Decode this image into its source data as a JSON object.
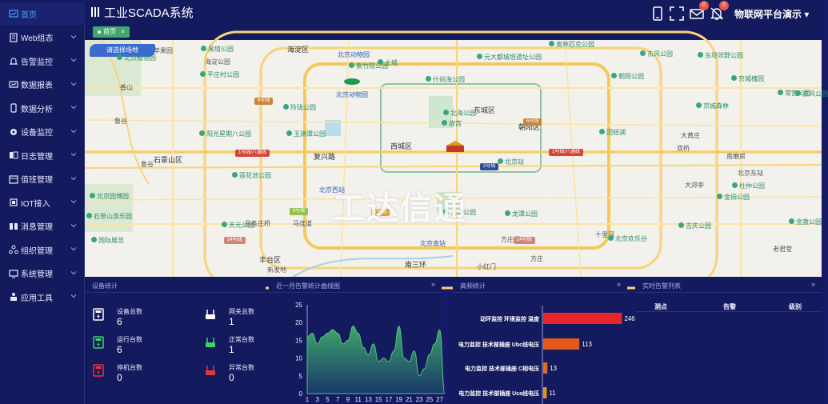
{
  "header": {
    "title": "工业SCADA系统",
    "mail_badge": "0",
    "alert_badge": "0",
    "user": "物联网平台演示"
  },
  "sidebar": {
    "items": [
      {
        "label": "首页",
        "icon": "dashboard-icon",
        "active": true,
        "chevron": false
      },
      {
        "label": "Web组态",
        "icon": "document-icon",
        "chevron": true
      },
      {
        "label": "告警监控",
        "icon": "bell-icon",
        "chevron": true
      },
      {
        "label": "数据报表",
        "icon": "report-icon",
        "chevron": true
      },
      {
        "label": "数据分析",
        "icon": "phone-icon",
        "chevron": true
      },
      {
        "label": "设备监控",
        "icon": "gear-icon",
        "chevron": true
      },
      {
        "label": "日志管理",
        "icon": "log-icon",
        "chevron": true
      },
      {
        "label": "值班管理",
        "icon": "calendar-icon",
        "chevron": true
      },
      {
        "label": "IOT接入",
        "icon": "iot-icon",
        "chevron": true
      },
      {
        "label": "消息管理",
        "icon": "message-icon",
        "chevron": true
      },
      {
        "label": "组织管理",
        "icon": "org-icon",
        "chevron": true
      },
      {
        "label": "系统管理",
        "icon": "monitor-icon",
        "chevron": true
      },
      {
        "label": "应用工具",
        "icon": "tool-icon",
        "chevron": true
      }
    ]
  },
  "tabs": {
    "home": "首页",
    "close": "×"
  },
  "map": {
    "site_select": "请选择场地",
    "watermark": "工达信通",
    "labels": [
      {
        "t": "海淀区",
        "x": 253,
        "y": 5,
        "k": "big"
      },
      {
        "t": "奥林匹克公园",
        "x": 580,
        "y": 0,
        "k": "poi"
      },
      {
        "t": "东风公园",
        "x": 694,
        "y": 12,
        "k": "poi"
      },
      {
        "t": "东坝郊野公园",
        "x": 766,
        "y": 14,
        "k": "poi"
      },
      {
        "t": "黑塔公园",
        "x": 145,
        "y": 6,
        "k": "poi"
      },
      {
        "t": "海淀公园",
        "x": 150,
        "y": 22,
        "k": ""
      },
      {
        "t": "北京动物园",
        "x": 316,
        "y": 13,
        "k": "blue"
      },
      {
        "t": "北京植物园",
        "x": 40,
        "y": 17,
        "k": "poi"
      },
      {
        "t": "苹果园",
        "x": 86,
        "y": 8,
        "k": ""
      },
      {
        "t": "紫竹院公园",
        "x": 330,
        "y": 27,
        "k": "poi"
      },
      {
        "t": "土城",
        "x": 366,
        "y": 23,
        "k": "poi"
      },
      {
        "t": "元大都城垣遗址公园",
        "x": 490,
        "y": 16,
        "k": "poi"
      },
      {
        "t": "平庄村公园",
        "x": 144,
        "y": 38,
        "k": "poi"
      },
      {
        "t": "北京动物园",
        "x": 314,
        "y": 63,
        "k": "blue"
      },
      {
        "t": "什刹海公园",
        "x": 426,
        "y": 44,
        "k": "poi"
      },
      {
        "t": "朝阳公园",
        "x": 658,
        "y": 40,
        "k": "poi"
      },
      {
        "t": "京城槐园",
        "x": 808,
        "y": 43,
        "k": "poi"
      },
      {
        "t": "常营公园",
        "x": 866,
        "y": 61,
        "k": "poi"
      },
      {
        "t": "东风公园",
        "x": 888,
        "y": 62,
        "k": "poi"
      },
      {
        "t": "北海公园",
        "x": 448,
        "y": 86,
        "k": "poi"
      },
      {
        "t": "东城区",
        "x": 486,
        "y": 81,
        "k": "big"
      },
      {
        "t": "京城森林",
        "x": 764,
        "y": 77,
        "k": "poi"
      },
      {
        "t": "玲珑公园",
        "x": 248,
        "y": 79,
        "k": "poi"
      },
      {
        "t": "香山",
        "x": 44,
        "y": 54,
        "k": ""
      },
      {
        "t": "故宫",
        "x": 446,
        "y": 99,
        "k": "poi"
      },
      {
        "t": "朝阳区",
        "x": 542,
        "y": 102,
        "k": "big"
      },
      {
        "t": "鲁谷",
        "x": 37,
        "y": 96,
        "k": ""
      },
      {
        "t": "阳光星期八公园",
        "x": 143,
        "y": 112,
        "k": "poi"
      },
      {
        "t": "玉渊潭公园",
        "x": 252,
        "y": 112,
        "k": "poi"
      },
      {
        "t": "团结湖",
        "x": 643,
        "y": 110,
        "k": "poi"
      },
      {
        "t": "大黄庄",
        "x": 745,
        "y": 114,
        "k": ""
      },
      {
        "t": "西城区",
        "x": 382,
        "y": 126,
        "k": "big"
      },
      {
        "t": "石景山区",
        "x": 86,
        "y": 143,
        "k": "big"
      },
      {
        "t": "复兴路",
        "x": 286,
        "y": 139,
        "k": "big"
      },
      {
        "t": "双桥",
        "x": 740,
        "y": 130,
        "k": ""
      },
      {
        "t": "南磨房",
        "x": 802,
        "y": 140,
        "k": ""
      },
      {
        "t": "北京站",
        "x": 516,
        "y": 147,
        "k": "poi"
      },
      {
        "t": "北京西站",
        "x": 293,
        "y": 182,
        "k": "blue"
      },
      {
        "t": "北京东站",
        "x": 816,
        "y": 161,
        "k": ""
      },
      {
        "t": "鲁谷",
        "x": 70,
        "y": 150,
        "k": ""
      },
      {
        "t": "莲花池公园",
        "x": 184,
        "y": 164,
        "k": "poi"
      },
      {
        "t": "杜仲公园",
        "x": 809,
        "y": 177,
        "k": "poi"
      },
      {
        "t": "金田公园",
        "x": 790,
        "y": 191,
        "k": "poi"
      },
      {
        "t": "北京园博园",
        "x": 6,
        "y": 190,
        "k": "poi"
      },
      {
        "t": "天坛公园",
        "x": 448,
        "y": 210,
        "k": "poi"
      },
      {
        "t": "龙潭公园",
        "x": 525,
        "y": 212,
        "k": "poi"
      },
      {
        "t": "十里河",
        "x": 638,
        "y": 238,
        "k": ""
      },
      {
        "t": "天元公园",
        "x": 171,
        "y": 226,
        "k": "poi"
      },
      {
        "t": "岳各庄桥",
        "x": 200,
        "y": 224,
        "k": ""
      },
      {
        "t": "吉庆公园",
        "x": 742,
        "y": 227,
        "k": "poi"
      },
      {
        "t": "石景山游乐园",
        "x": 2,
        "y": 215,
        "k": "poi"
      },
      {
        "t": "北京南站",
        "x": 419,
        "y": 249,
        "k": "blue"
      },
      {
        "t": "方庄桥",
        "x": 520,
        "y": 244,
        "k": ""
      },
      {
        "t": "北京欢乐谷",
        "x": 654,
        "y": 243,
        "k": "poi"
      },
      {
        "t": "国际展览",
        "x": 8,
        "y": 245,
        "k": "poi"
      },
      {
        "t": "丰台区",
        "x": 218,
        "y": 268,
        "k": "big"
      },
      {
        "t": "南三环",
        "x": 400,
        "y": 274,
        "k": "big"
      },
      {
        "t": "方庄",
        "x": 557,
        "y": 268,
        "k": ""
      },
      {
        "t": "老君堂",
        "x": 860,
        "y": 256,
        "k": ""
      },
      {
        "t": "金盏公园",
        "x": 880,
        "y": 222,
        "k": "poi"
      },
      {
        "t": "小红门",
        "x": 490,
        "y": 278,
        "k": ""
      },
      {
        "t": "大郊亭",
        "x": 750,
        "y": 176,
        "k": ""
      },
      {
        "t": "马连道",
        "x": 260,
        "y": 224,
        "k": ""
      },
      {
        "t": "新发地",
        "x": 228,
        "y": 282,
        "k": ""
      }
    ],
    "shields": [
      {
        "t": "6号线",
        "x": 212,
        "y": 72,
        "c": "#c7853b"
      },
      {
        "t": "6号线",
        "x": 548,
        "y": 98,
        "c": "#c7853b"
      },
      {
        "t": "1号线/八通线",
        "x": 188,
        "y": 137,
        "c": "#d2473b"
      },
      {
        "t": "1号线/八通线",
        "x": 580,
        "y": 136,
        "c": "#d2473b"
      },
      {
        "t": "9号线",
        "x": 256,
        "y": 210,
        "c": "#8ec347"
      },
      {
        "t": "14号线",
        "x": 174,
        "y": 246,
        "c": "#d2847c"
      },
      {
        "t": "2号线",
        "x": 494,
        "y": 154,
        "c": "#2d4c9e"
      },
      {
        "t": "14号线",
        "x": 536,
        "y": 246,
        "c": "#d2847c"
      },
      {
        "t": "7号线",
        "x": 358,
        "y": 211,
        "c": "#d9a441"
      }
    ]
  },
  "device_stats": {
    "title": "设备统计",
    "items": [
      {
        "label": "设备总数",
        "value": "6",
        "icon": "device-total-icon",
        "color": "#ffffff"
      },
      {
        "label": "网关总数",
        "value": "1",
        "icon": "gateway-total-icon",
        "color": "#ffffff"
      },
      {
        "label": "运行台数",
        "value": "6",
        "icon": "device-running-icon",
        "color": "#39d36a"
      },
      {
        "label": "正常台数",
        "value": "1",
        "icon": "gateway-normal-icon",
        "color": "#39d36a"
      },
      {
        "label": "停机台数",
        "value": "0",
        "icon": "device-stopped-icon",
        "color": "#e8343a"
      },
      {
        "label": "异常台数",
        "value": "0",
        "icon": "gateway-abnormal-icon",
        "color": "#e8343a"
      }
    ]
  },
  "alarm_trend": {
    "title": "近一月告警统计曲线图"
  },
  "freq_stats": {
    "title": "高频统计"
  },
  "alarm_list": {
    "title": "实时告警列表",
    "columns": [
      "测点",
      "告警",
      "级别"
    ]
  },
  "chart_data": [
    {
      "type": "area",
      "title": "近一月告警统计曲线图",
      "x": [
        1,
        2,
        3,
        4,
        5,
        6,
        7,
        8,
        9,
        10,
        11,
        12,
        13,
        14,
        15,
        16,
        17,
        18,
        19,
        20,
        21,
        22,
        23,
        24,
        25,
        26,
        27,
        28
      ],
      "values": [
        16,
        17,
        14,
        16,
        17,
        18,
        17,
        14,
        15,
        19,
        17,
        13,
        11,
        14,
        9,
        10,
        9,
        12,
        19,
        10,
        9,
        12,
        5,
        7,
        11,
        14,
        18,
        0
      ],
      "xticks": [
        1,
        3,
        5,
        7,
        9,
        11,
        13,
        15,
        17,
        19,
        21,
        23,
        25,
        27
      ],
      "yticks": [
        0,
        5,
        10,
        15,
        20,
        25
      ],
      "ylim": [
        0,
        25
      ],
      "color": "#3fa86a"
    },
    {
      "type": "bar",
      "title": "高频统计",
      "categories": [
        "动环监控 环境监控 温度",
        "电力监控 技术部插座 Ubc线电压",
        "电力监控 技术部插座 C相电压",
        "电力监控 技术部插座 Uca线电压"
      ],
      "values": [
        246,
        113,
        13,
        11
      ],
      "colors": [
        "#e8262a",
        "#e4591c",
        "#e46a1c",
        "#e4961c"
      ],
      "xlim": [
        0,
        250
      ]
    }
  ]
}
